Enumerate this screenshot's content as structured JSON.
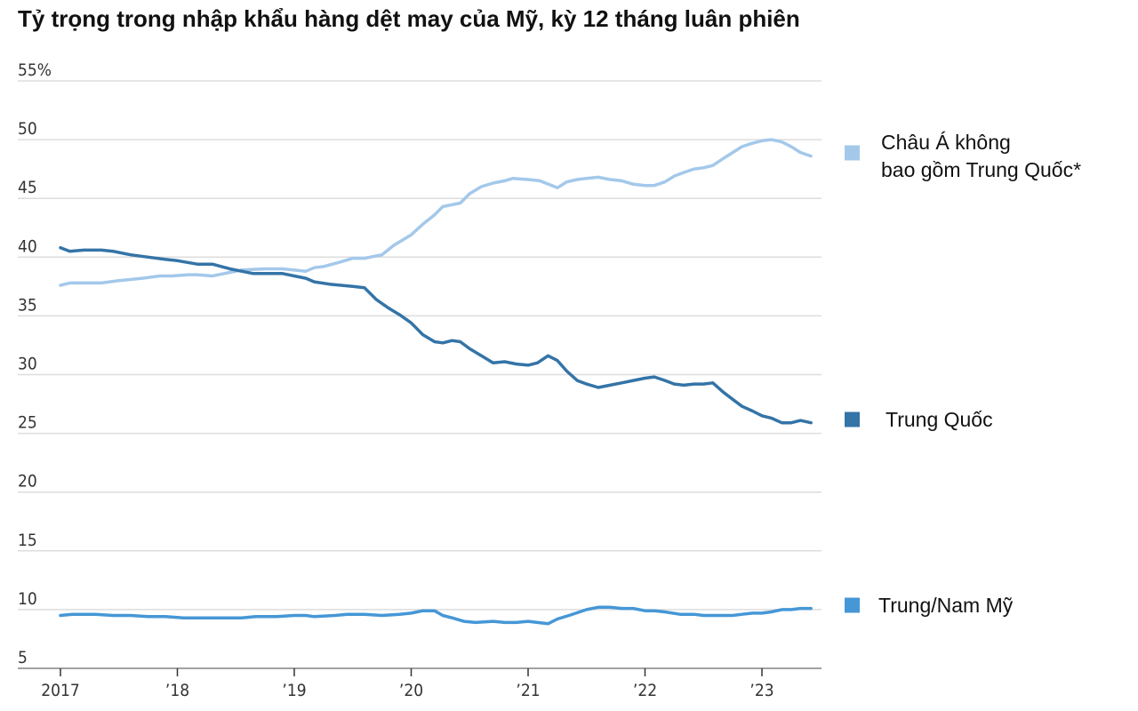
{
  "chart_data": {
    "type": "line",
    "title": "Tỷ trọng trong nhập khẩu hàng dệt may của Mỹ, kỳ 12 tháng luân phiên",
    "ylim": [
      5,
      55
    ],
    "yticks": [
      5,
      10,
      15,
      20,
      25,
      30,
      35,
      40,
      45,
      50,
      55
    ],
    "ytick_labels": [
      "5",
      "10",
      "15",
      "20",
      "25",
      "30",
      "35",
      "40",
      "45",
      "50",
      "55%"
    ],
    "xlim": [
      2017,
      2023.5
    ],
    "xticks": [
      2017,
      2018,
      2019,
      2020,
      2021,
      2022,
      2023
    ],
    "xtick_labels": [
      "2017",
      "’18",
      "’19",
      "’20",
      "’21",
      "’22",
      "’23"
    ],
    "grid": true,
    "legend_position": "right",
    "series": [
      {
        "name_lines": [
          "Châu Á không",
          "bao gồm Trung Quốc*"
        ],
        "color": "#a3c8ea",
        "x": [
          2017.0,
          2017.08,
          2017.2,
          2017.35,
          2017.5,
          2017.7,
          2017.85,
          2017.95,
          2018.1,
          2018.17,
          2018.3,
          2018.4,
          2018.55,
          2018.75,
          2018.9,
          2019.1,
          2019.17,
          2019.25,
          2019.4,
          2019.5,
          2019.6,
          2019.75,
          2019.85,
          2020.0,
          2020.1,
          2020.2,
          2020.27,
          2020.42,
          2020.5,
          2020.6,
          2020.7,
          2020.8,
          2020.87,
          2021.0,
          2021.1,
          2021.25,
          2021.33,
          2021.42,
          2021.5,
          2021.6,
          2021.7,
          2021.8,
          2021.9,
          2022.0,
          2022.08,
          2022.17,
          2022.25,
          2022.33,
          2022.42,
          2022.5,
          2022.58,
          2022.67,
          2022.75,
          2022.83,
          2022.92,
          2023.0,
          2023.08,
          2023.17,
          2023.25,
          2023.33,
          2023.42
        ],
        "values": [
          37.6,
          37.8,
          37.8,
          37.8,
          38.0,
          38.2,
          38.4,
          38.4,
          38.5,
          38.5,
          38.4,
          38.6,
          38.9,
          39.0,
          39.0,
          38.8,
          39.1,
          39.2,
          39.6,
          39.9,
          39.9,
          40.2,
          41.0,
          41.9,
          42.8,
          43.6,
          44.3,
          44.6,
          45.4,
          46.0,
          46.3,
          46.5,
          46.7,
          46.6,
          46.5,
          45.9,
          46.4,
          46.6,
          46.7,
          46.8,
          46.6,
          46.5,
          46.2,
          46.1,
          46.1,
          46.4,
          46.9,
          47.2,
          47.5,
          47.6,
          47.8,
          48.4,
          48.9,
          49.4,
          49.7,
          49.9,
          50.0,
          49.8,
          49.4,
          48.9,
          48.6
        ]
      },
      {
        "name": "Trung Quốc",
        "color": "#3474a7",
        "x": [
          2017.0,
          2017.08,
          2017.2,
          2017.35,
          2017.45,
          2017.6,
          2017.75,
          2017.9,
          2018.0,
          2018.17,
          2018.3,
          2018.45,
          2018.55,
          2018.65,
          2018.75,
          2018.9,
          2019.0,
          2019.1,
          2019.17,
          2019.3,
          2019.5,
          2019.6,
          2019.7,
          2019.8,
          2019.9,
          2020.0,
          2020.1,
          2020.2,
          2020.27,
          2020.35,
          2020.42,
          2020.5,
          2020.6,
          2020.7,
          2020.8,
          2020.9,
          2021.0,
          2021.08,
          2021.17,
          2021.25,
          2021.33,
          2021.42,
          2021.5,
          2021.6,
          2021.7,
          2021.8,
          2021.9,
          2022.0,
          2022.08,
          2022.17,
          2022.25,
          2022.33,
          2022.42,
          2022.5,
          2022.58,
          2022.67,
          2022.75,
          2022.83,
          2022.92,
          2023.0,
          2023.08,
          2023.17,
          2023.25,
          2023.33,
          2023.42
        ],
        "values": [
          40.8,
          40.5,
          40.6,
          40.6,
          40.5,
          40.2,
          40.0,
          39.8,
          39.7,
          39.4,
          39.4,
          39.0,
          38.8,
          38.6,
          38.6,
          38.6,
          38.4,
          38.2,
          37.9,
          37.7,
          37.5,
          37.4,
          36.4,
          35.7,
          35.1,
          34.4,
          33.4,
          32.8,
          32.7,
          32.9,
          32.8,
          32.2,
          31.6,
          31.0,
          31.1,
          30.9,
          30.8,
          31.0,
          31.6,
          31.2,
          30.3,
          29.5,
          29.2,
          28.9,
          29.1,
          29.3,
          29.5,
          29.7,
          29.8,
          29.5,
          29.2,
          29.1,
          29.2,
          29.2,
          29.3,
          28.5,
          27.9,
          27.3,
          26.9,
          26.5,
          26.3,
          25.9,
          25.9,
          26.1,
          25.9
        ]
      },
      {
        "name": "Trung/Nam Mỹ",
        "color": "#4697d6",
        "x": [
          2017.0,
          2017.1,
          2017.3,
          2017.45,
          2017.6,
          2017.75,
          2017.9,
          2018.05,
          2018.17,
          2018.35,
          2018.55,
          2018.67,
          2018.85,
          2019.0,
          2019.1,
          2019.17,
          2019.35,
          2019.45,
          2019.6,
          2019.75,
          2019.9,
          2020.0,
          2020.1,
          2020.2,
          2020.27,
          2020.35,
          2020.45,
          2020.55,
          2020.7,
          2020.8,
          2020.9,
          2021.0,
          2021.08,
          2021.17,
          2021.25,
          2021.35,
          2021.5,
          2021.6,
          2021.7,
          2021.8,
          2021.9,
          2022.0,
          2022.08,
          2022.17,
          2022.3,
          2022.42,
          2022.5,
          2022.67,
          2022.75,
          2022.83,
          2022.92,
          2023.0,
          2023.08,
          2023.17,
          2023.25,
          2023.33,
          2023.42
        ],
        "values": [
          9.5,
          9.6,
          9.6,
          9.5,
          9.5,
          9.4,
          9.4,
          9.3,
          9.3,
          9.3,
          9.3,
          9.4,
          9.4,
          9.5,
          9.5,
          9.4,
          9.5,
          9.6,
          9.6,
          9.5,
          9.6,
          9.7,
          9.9,
          9.9,
          9.5,
          9.3,
          9.0,
          8.9,
          9.0,
          8.9,
          8.9,
          9.0,
          8.9,
          8.8,
          9.2,
          9.5,
          10.0,
          10.2,
          10.2,
          10.1,
          10.1,
          9.9,
          9.9,
          9.8,
          9.6,
          9.6,
          9.5,
          9.5,
          9.5,
          9.6,
          9.7,
          9.7,
          9.8,
          10.0,
          10.0,
          10.1,
          10.1
        ]
      }
    ]
  }
}
